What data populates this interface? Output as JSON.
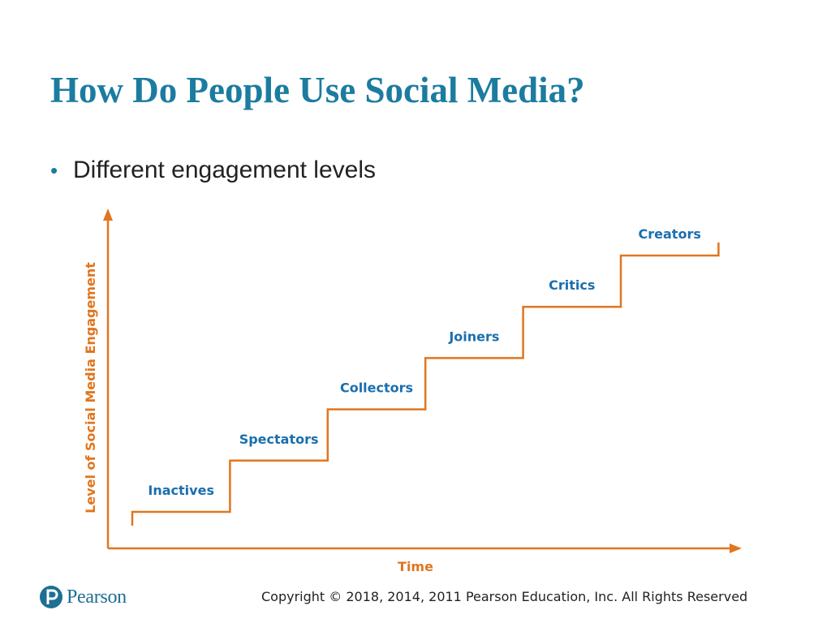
{
  "slide": {
    "title": "How Do People Use Social Media?",
    "bullet": "Different engagement levels"
  },
  "diagram": {
    "y_axis_label": "Level of Social Media Engagement",
    "x_axis_label": "Time",
    "levels": [
      "Inactives",
      "Spectators",
      "Collectors",
      "Joiners",
      "Critics",
      "Creators"
    ],
    "colors": {
      "title": "#1b7ca0",
      "line": "#e0761f",
      "level_label": "#1a6fae"
    }
  },
  "footer": {
    "copyright": "Copyright © 2018, 2014, 2011 Pearson Education, Inc. All Rights Reserved",
    "logo_text": "Pearson",
    "logo_icon": "pearson-p-icon"
  }
}
